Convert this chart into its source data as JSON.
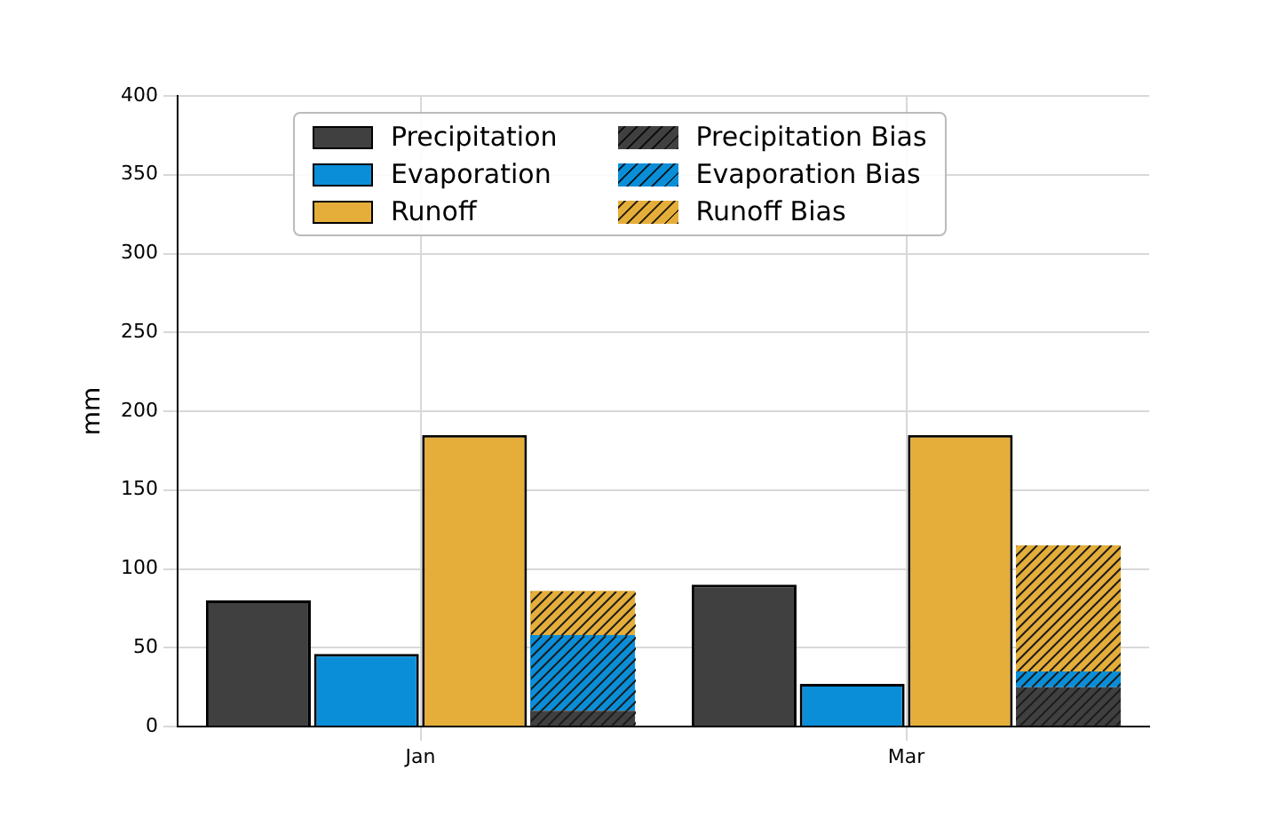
{
  "chart_data": {
    "type": "bar",
    "ylabel": "mm",
    "categories": [
      "Jan",
      "Mar"
    ],
    "series": [
      {
        "name": "Precipitation",
        "color": "#404040",
        "values": [
          80,
          90
        ]
      },
      {
        "name": "Evaporation",
        "color": "#0b8ed8",
        "values": [
          46,
          27
        ]
      },
      {
        "name": "Runoff",
        "color": "#e5ae3b",
        "values": [
          185,
          185
        ]
      },
      {
        "name": "Precipitation Bias",
        "color": "#404040",
        "values": [
          10,
          25
        ],
        "base": [
          0,
          0
        ]
      },
      {
        "name": "Evaporation Bias",
        "color": "#0b8ed8",
        "values": [
          48,
          10
        ],
        "base": [
          10,
          25
        ]
      },
      {
        "name": "Runoff Bias",
        "color": "#e5ae3b",
        "values": [
          28,
          80
        ],
        "base": [
          58,
          35
        ]
      }
    ],
    "ylim": [
      0,
      400
    ],
    "yticks": [
      0,
      50,
      100,
      150,
      200,
      250,
      300,
      350,
      400
    ],
    "grid": true,
    "legend": "top"
  }
}
